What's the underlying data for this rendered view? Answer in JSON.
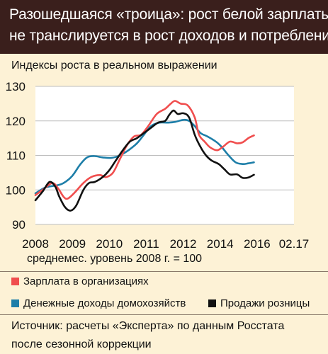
{
  "header": {
    "line1": "Разошедшаяся «троица»: рост белой зарплаты",
    "line2": "не транслируется в рост доходов и потребления"
  },
  "chart_data": {
    "type": "line",
    "title": "Разошедшаяся «троица»: рост белой зарплаты не транслируется в рост доходов и потребления",
    "ylabel": "Индексы роста в реальном выражении",
    "note": "среднемес. уровень 2008 г. = 100",
    "x_ticks": [
      "2008",
      "2009",
      "2010",
      "2011",
      "2012",
      "2014",
      "2016",
      "02.17"
    ],
    "x_range": [
      2008,
      2017.17
    ],
    "ylim": [
      90,
      130
    ],
    "y_ticks": [
      90,
      100,
      110,
      120,
      130
    ],
    "grid": "horizontal",
    "series": [
      {
        "name": "Зарплата в организациях",
        "color": "#f04e4e",
        "points": [
          [
            2008.0,
            98.5
          ],
          [
            2008.3,
            100.3
          ],
          [
            2008.6,
            102.0
          ],
          [
            2008.8,
            100.5
          ],
          [
            2009.0,
            98.0
          ],
          [
            2009.15,
            97.5
          ],
          [
            2009.4,
            99.3
          ],
          [
            2009.7,
            102.0
          ],
          [
            2010.0,
            103.8
          ],
          [
            2010.3,
            104.3
          ],
          [
            2010.5,
            103.7
          ],
          [
            2010.75,
            105.0
          ],
          [
            2011.0,
            109.0
          ],
          [
            2011.25,
            113.0
          ],
          [
            2011.5,
            115.5
          ],
          [
            2011.75,
            116.0
          ],
          [
            2012.0,
            118.5
          ],
          [
            2012.3,
            122.0
          ],
          [
            2012.6,
            123.5
          ],
          [
            2012.8,
            125.0
          ],
          [
            2012.95,
            125.8
          ],
          [
            2013.15,
            125.0
          ],
          [
            2013.4,
            124.5
          ],
          [
            2013.65,
            121.0
          ],
          [
            2013.8,
            116.0
          ],
          [
            2014.0,
            114.0
          ],
          [
            2014.2,
            112.3
          ],
          [
            2014.45,
            111.5
          ],
          [
            2014.65,
            112.5
          ],
          [
            2014.9,
            114.0
          ],
          [
            2015.15,
            113.5
          ],
          [
            2015.35,
            113.8
          ],
          [
            2015.55,
            115.0
          ],
          [
            2015.75,
            115.8
          ]
        ]
      },
      {
        "name": "Денежные доходы домохозяйств",
        "color": "#1d7ea8",
        "points": [
          [
            2008.0,
            99.0
          ],
          [
            2008.3,
            100.5
          ],
          [
            2008.5,
            101.0
          ],
          [
            2008.75,
            101.3
          ],
          [
            2009.0,
            102.0
          ],
          [
            2009.3,
            104.0
          ],
          [
            2009.6,
            107.5
          ],
          [
            2009.85,
            109.5
          ],
          [
            2010.1,
            109.8
          ],
          [
            2010.4,
            109.4
          ],
          [
            2010.7,
            109.3
          ],
          [
            2011.0,
            110.0
          ],
          [
            2011.3,
            111.5
          ],
          [
            2011.6,
            113.5
          ],
          [
            2011.85,
            116.0
          ],
          [
            2012.1,
            118.5
          ],
          [
            2012.4,
            119.5
          ],
          [
            2012.7,
            119.5
          ],
          [
            2012.95,
            119.7
          ],
          [
            2013.25,
            120.3
          ],
          [
            2013.45,
            120.0
          ],
          [
            2013.65,
            118.5
          ],
          [
            2013.85,
            116.5
          ],
          [
            2014.1,
            115.5
          ],
          [
            2014.4,
            114.0
          ],
          [
            2014.6,
            112.5
          ],
          [
            2014.85,
            110.0
          ],
          [
            2015.1,
            108.0
          ],
          [
            2015.35,
            107.5
          ],
          [
            2015.55,
            107.7
          ],
          [
            2015.75,
            108.0
          ]
        ]
      },
      {
        "name": "Продажи розницы",
        "color": "#111111",
        "points": [
          [
            2008.0,
            97.0
          ],
          [
            2008.25,
            99.5
          ],
          [
            2008.5,
            102.3
          ],
          [
            2008.7,
            101.0
          ],
          [
            2008.85,
            98.0
          ],
          [
            2009.05,
            95.0
          ],
          [
            2009.25,
            94.0
          ],
          [
            2009.45,
            95.5
          ],
          [
            2009.7,
            100.0
          ],
          [
            2009.9,
            102.0
          ],
          [
            2010.1,
            102.3
          ],
          [
            2010.35,
            103.5
          ],
          [
            2010.6,
            105.5
          ],
          [
            2010.85,
            108.5
          ],
          [
            2011.1,
            111.5
          ],
          [
            2011.35,
            114.0
          ],
          [
            2011.6,
            115.0
          ],
          [
            2011.85,
            116.5
          ],
          [
            2012.1,
            118.0
          ],
          [
            2012.35,
            119.5
          ],
          [
            2012.6,
            120.0
          ],
          [
            2012.75,
            121.8
          ],
          [
            2012.9,
            123.0
          ],
          [
            2013.05,
            122.0
          ],
          [
            2013.25,
            122.2
          ],
          [
            2013.45,
            121.0
          ],
          [
            2013.65,
            116.0
          ],
          [
            2013.85,
            112.5
          ],
          [
            2014.05,
            110.0
          ],
          [
            2014.25,
            108.5
          ],
          [
            2014.5,
            107.5
          ],
          [
            2014.7,
            106.0
          ],
          [
            2014.9,
            104.5
          ],
          [
            2015.15,
            104.5
          ],
          [
            2015.35,
            103.5
          ],
          [
            2015.55,
            103.6
          ],
          [
            2015.75,
            104.4
          ]
        ]
      }
    ]
  },
  "source": {
    "line1": "Источник: расчеты «Эксперта» по данным Росстата",
    "line2": "после сезонной коррекции"
  }
}
